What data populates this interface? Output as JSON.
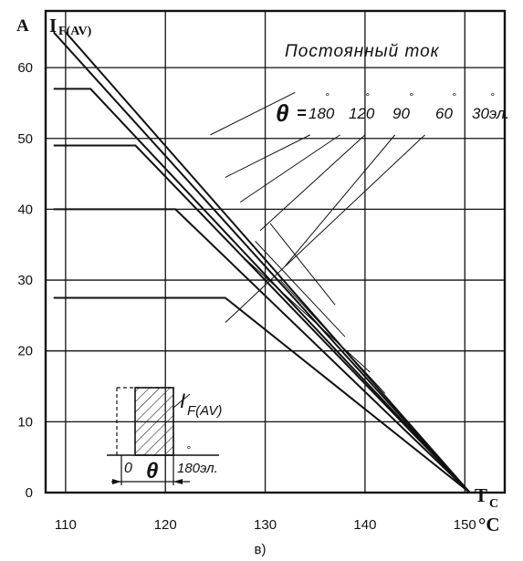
{
  "chart_data": {
    "type": "line",
    "title": "",
    "caption": "в)",
    "ylabel_unit": "A",
    "ylabel_main": "I",
    "ylabel_sub": "F(AV)",
    "xlabel_main": "T",
    "xlabel_sub": "C",
    "x_unit": "°C",
    "xlim": [
      108,
      154
    ],
    "ylim": [
      0,
      68
    ],
    "x_ticks": [
      "110",
      "120",
      "130",
      "140",
      "150"
    ],
    "x_tick_values": [
      110,
      120,
      130,
      140,
      150
    ],
    "y_ticks": [
      "0",
      "10",
      "20",
      "30",
      "40",
      "50",
      "60"
    ],
    "y_tick_values": [
      0,
      10,
      20,
      30,
      40,
      50,
      60
    ],
    "grid": true,
    "annotation_dc": "Постоянный ток",
    "theta_symbol": "θ",
    "theta_eq": "=",
    "angle_labels": [
      "180",
      "120",
      "90",
      "60",
      "30эл."
    ],
    "inset": {
      "current_label": "I",
      "current_sub": "F(AV)",
      "zero_label": "0",
      "theta_label": "θ",
      "end_label": "180эл."
    },
    "series": [
      {
        "label": "Постоянный ток",
        "x": [
          108.8,
          150.5
        ],
        "y": [
          65.0,
          0
        ]
      },
      {
        "label": "180",
        "x": [
          108.8,
          112.5,
          150.5
        ],
        "y": [
          57.0,
          57.0,
          0
        ]
      },
      {
        "label": "120",
        "x": [
          108.8,
          117.0,
          150.5
        ],
        "y": [
          49.0,
          49.0,
          0
        ]
      },
      {
        "label": "90",
        "x": [
          108.8,
          121.0,
          150.5
        ],
        "y": [
          40.0,
          40.0,
          0
        ]
      },
      {
        "label": "60",
        "x": [
          108.8,
          126.0,
          150.5
        ],
        "y": [
          27.5,
          27.5,
          0
        ]
      },
      {
        "label": "30эл.",
        "x": [
          110.0,
          150.5
        ],
        "y": [
          65.0,
          0
        ]
      }
    ],
    "leaders": [
      {
        "label": "Постоянный ток",
        "from": [
          133.0,
          56.5
        ],
        "to": [
          124.5,
          50.5
        ]
      },
      {
        "label": "180",
        "from": [
          134.5,
          50.5
        ],
        "to": [
          126.0,
          44.5
        ]
      },
      {
        "label": "120",
        "from": [
          137.5,
          50.5
        ],
        "to": [
          127.5,
          41.0
        ]
      },
      {
        "label": "90",
        "from": [
          140.0,
          50.5
        ],
        "to": [
          129.5,
          37.0
        ]
      },
      {
        "label": "60",
        "from": [
          143.0,
          50.5
        ],
        "to": [
          132.0,
          32.0
        ]
      },
      {
        "label": "30эл.",
        "from": [
          146.0,
          50.5
        ],
        "to": [
          126.0,
          24.0
        ]
      }
    ],
    "extra_leader_ends": [
      {
        "from": [
          130.5,
          38.0
        ],
        "to": [
          137.0,
          26.5
        ]
      },
      {
        "from": [
          129.0,
          35.5
        ],
        "to": [
          138.0,
          22.0
        ]
      },
      {
        "from": [
          128.0,
          33.0
        ],
        "to": [
          140.5,
          17.0
        ]
      },
      {
        "from": [
          131.5,
          30.0
        ],
        "to": [
          142.0,
          14.0
        ]
      }
    ]
  }
}
